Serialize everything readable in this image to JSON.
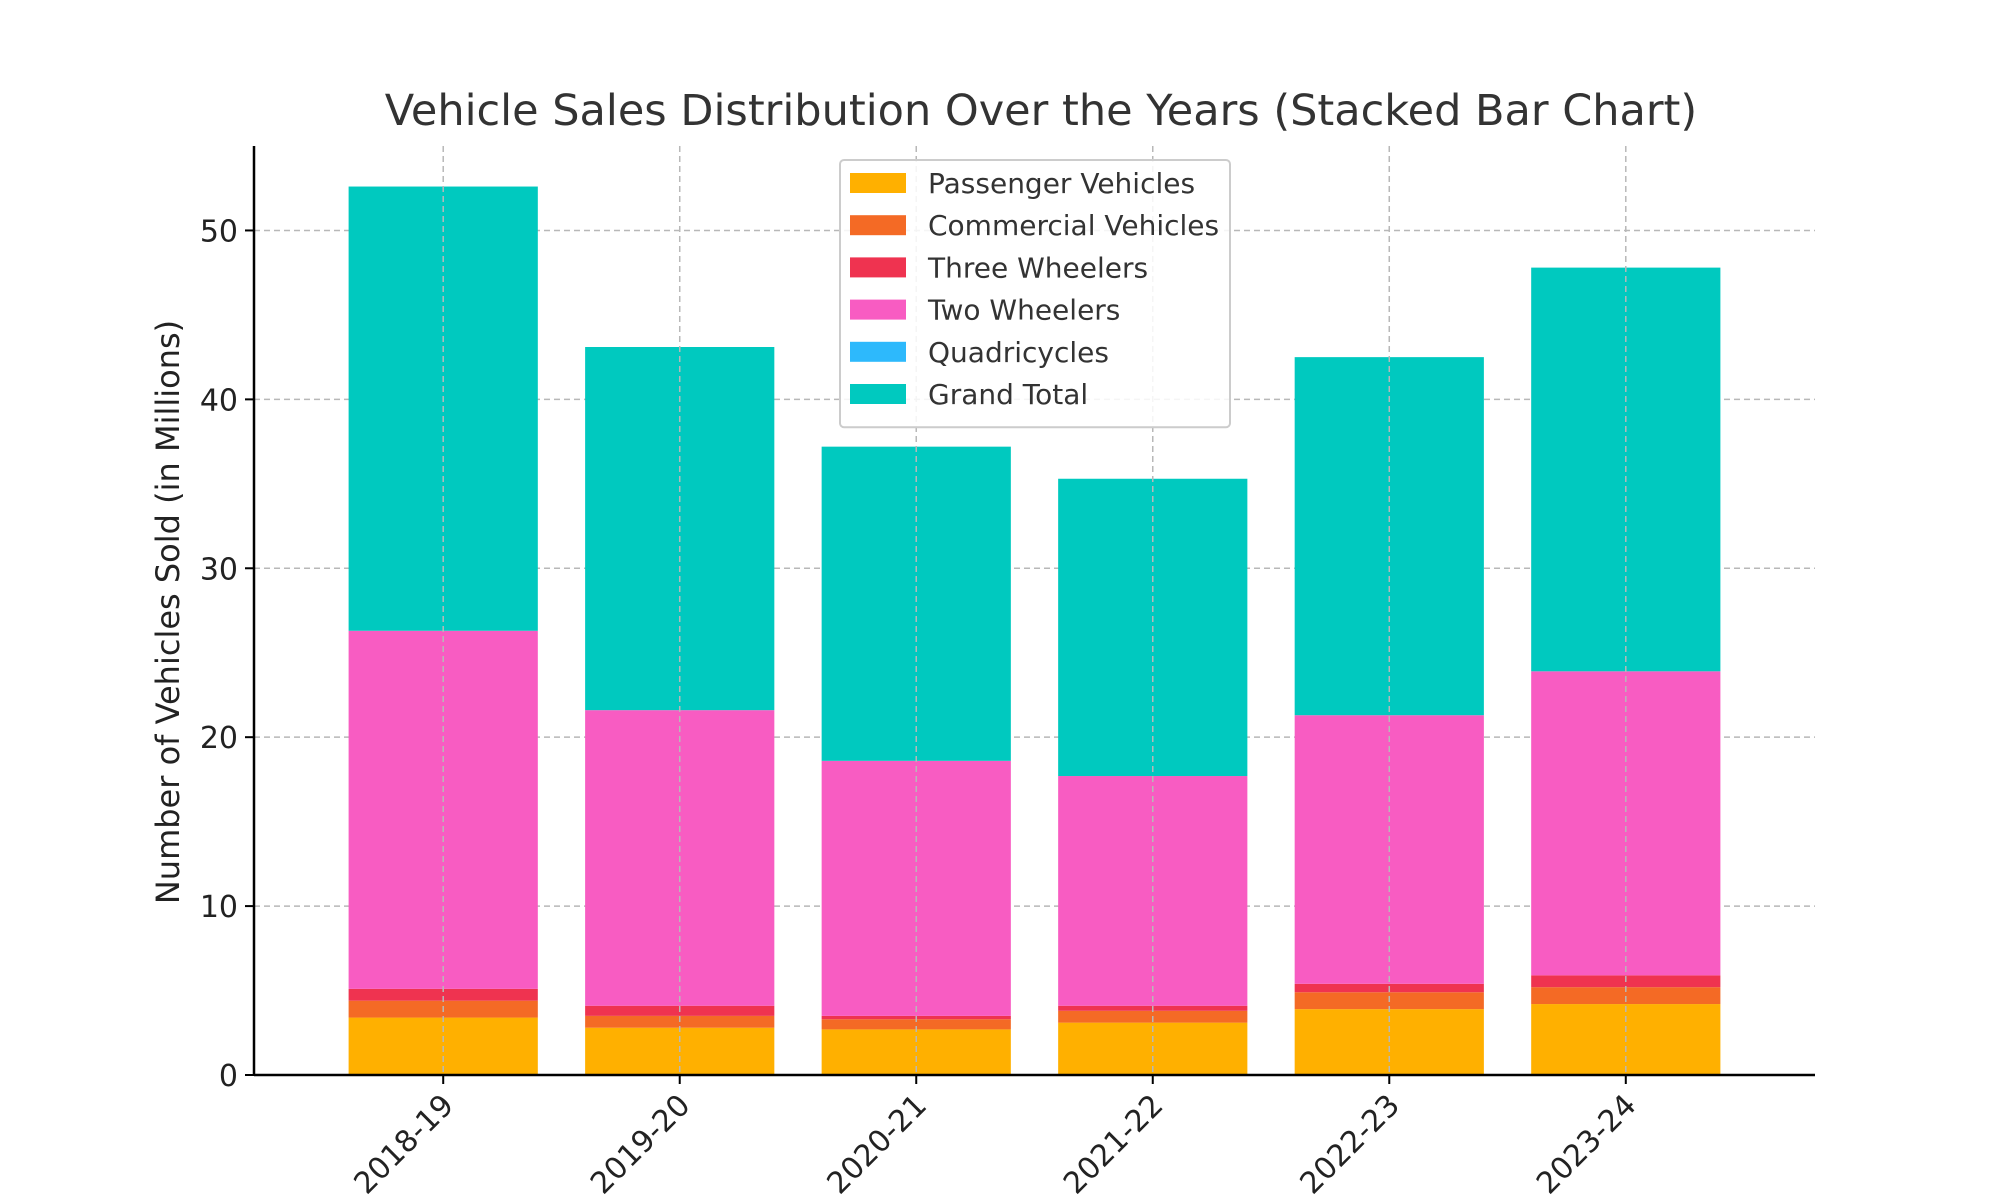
{
  "chart_data": {
    "type": "bar",
    "stacked": true,
    "title": "Vehicle Sales Distribution Over the Years (Stacked Bar Chart)",
    "xlabel": "",
    "ylabel": "Number of Vehicles Sold (in Millions)",
    "ylim": [
      0,
      55
    ],
    "yticks": [
      0,
      10,
      20,
      30,
      40,
      50
    ],
    "grid": true,
    "legend_position": "top-center",
    "categories": [
      "2018-19",
      "2019-20",
      "2020-21",
      "2021-22",
      "2022-23",
      "2023-24"
    ],
    "series": [
      {
        "name": "Passenger Vehicles",
        "color": "#FFB000",
        "values": [
          3.4,
          2.8,
          2.7,
          3.1,
          3.9,
          4.2
        ]
      },
      {
        "name": "Commercial Vehicles",
        "color": "#F46A25",
        "values": [
          1.0,
          0.7,
          0.6,
          0.7,
          1.0,
          1.0
        ]
      },
      {
        "name": "Three Wheelers",
        "color": "#EF3350",
        "values": [
          0.7,
          0.6,
          0.2,
          0.3,
          0.5,
          0.7
        ]
      },
      {
        "name": "Two Wheelers",
        "color": "#F85CC2",
        "values": [
          21.2,
          17.5,
          15.1,
          13.6,
          15.9,
          18.0
        ]
      },
      {
        "name": "Quadricycles",
        "color": "#2DB9FC",
        "values": [
          0.0,
          0.0,
          0.0,
          0.0,
          0.0,
          0.0
        ]
      },
      {
        "name": "Grand Total",
        "color": "#00C9BF",
        "values": [
          26.3,
          21.5,
          18.6,
          17.6,
          21.2,
          23.9
        ]
      }
    ]
  }
}
